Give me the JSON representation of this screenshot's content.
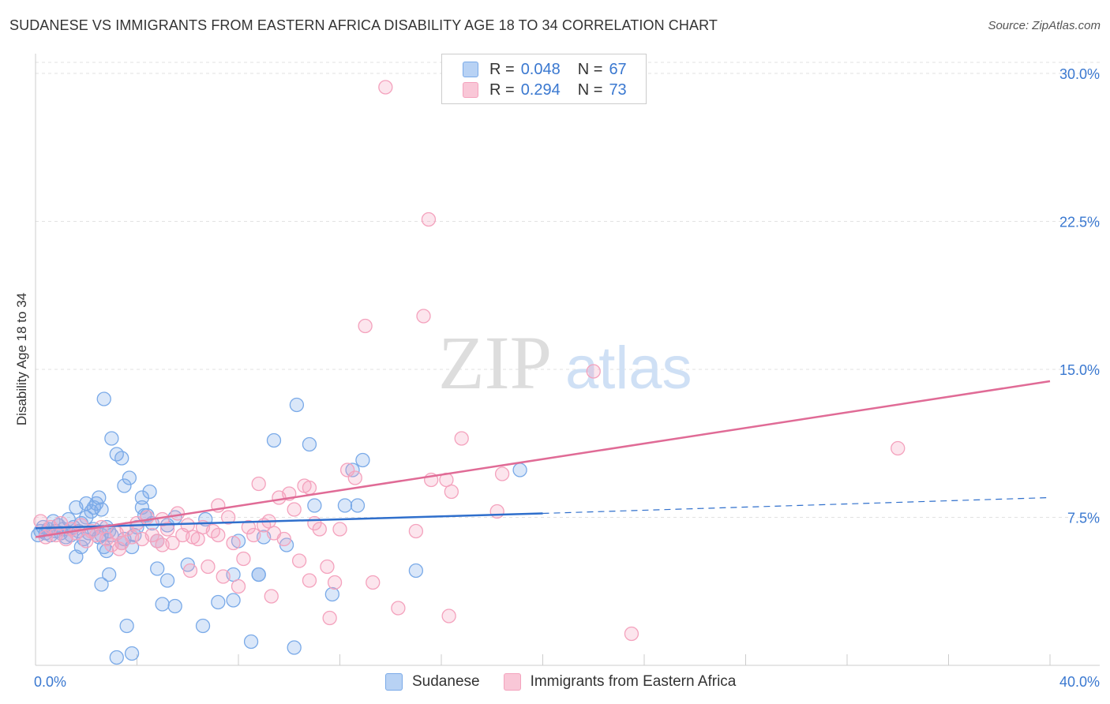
{
  "title": "SUDANESE VS IMMIGRANTS FROM EASTERN AFRICA DISABILITY AGE 18 TO 34 CORRELATION CHART",
  "source": "Source: ZipAtlas.com",
  "watermark": {
    "zip": "ZIP",
    "atlas": "atlas"
  },
  "legend": {
    "series": [
      {
        "r_label": "R =",
        "r_value": "0.048",
        "n_label": "N =",
        "n_value": "67"
      },
      {
        "r_label": "R =",
        "r_value": "0.294",
        "n_label": "N =",
        "n_value": "73"
      }
    ]
  },
  "chart_data": {
    "type": "scatter",
    "title": "SUDANESE VS IMMIGRANTS FROM EASTERN AFRICA DISABILITY AGE 18 TO 34 CORRELATION CHART",
    "xlabel": "",
    "ylabel": "Disability Age 18 to 34",
    "xlim": [
      0,
      40
    ],
    "ylim": [
      0,
      31
    ],
    "x_tick_labels": [
      "0.0%",
      "40.0%"
    ],
    "y_ticks": [
      7.5,
      15.0,
      22.5,
      30.0
    ],
    "y_tick_labels": [
      "7.5%",
      "15.0%",
      "22.5%",
      "30.0%"
    ],
    "grid": true,
    "legend_position": "top-center",
    "series": [
      {
        "name": "Sudanese",
        "color": "#7aaae8",
        "line_color": "#2f6fcc",
        "trend": {
          "x0": 0,
          "y0": 6.95,
          "x1": 20,
          "y1": 7.7,
          "dash_to_x": 40,
          "dash_to_y": 8.5
        },
        "points": [
          [
            0.1,
            6.6
          ],
          [
            0.2,
            6.8
          ],
          [
            0.3,
            7.0
          ],
          [
            0.4,
            6.7
          ],
          [
            0.5,
            6.9
          ],
          [
            0.6,
            6.6
          ],
          [
            0.7,
            7.3
          ],
          [
            0.8,
            6.8
          ],
          [
            0.9,
            7.1
          ],
          [
            1.0,
            6.7
          ],
          [
            1.1,
            6.9
          ],
          [
            1.2,
            6.5
          ],
          [
            1.3,
            7.4
          ],
          [
            1.4,
            6.6
          ],
          [
            1.5,
            7.0
          ],
          [
            1.6,
            8.0
          ],
          [
            1.7,
            6.8
          ],
          [
            1.8,
            7.2
          ],
          [
            1.9,
            6.4
          ],
          [
            2.0,
            8.2
          ],
          [
            2.1,
            6.7
          ],
          [
            2.2,
            7.8
          ],
          [
            2.3,
            6.9
          ],
          [
            2.4,
            8.2
          ],
          [
            2.5,
            6.5
          ],
          [
            2.6,
            7.9
          ],
          [
            2.7,
            6.0
          ],
          [
            2.8,
            5.8
          ],
          [
            2.9,
            6.8
          ],
          [
            3.0,
            6.6
          ],
          [
            1.6,
            5.5
          ],
          [
            1.8,
            6.0
          ],
          [
            2.0,
            7.5
          ],
          [
            2.3,
            8.0
          ],
          [
            2.5,
            8.5
          ],
          [
            2.6,
            6.6
          ],
          [
            2.8,
            7.0
          ],
          [
            3.0,
            11.5
          ],
          [
            3.2,
            10.7
          ],
          [
            3.4,
            10.5
          ],
          [
            3.5,
            6.4
          ],
          [
            3.7,
            9.5
          ],
          [
            3.9,
            6.6
          ],
          [
            4.0,
            7.0
          ],
          [
            4.2,
            8.5
          ],
          [
            4.4,
            7.6
          ],
          [
            4.6,
            7.2
          ],
          [
            4.8,
            6.3
          ],
          [
            2.9,
            4.6
          ],
          [
            2.6,
            4.1
          ],
          [
            3.5,
            9.1
          ],
          [
            2.7,
            13.5
          ],
          [
            5.2,
            4.3
          ],
          [
            5.5,
            3.0
          ],
          [
            6.0,
            5.1
          ],
          [
            4.8,
            4.9
          ],
          [
            5.0,
            3.1
          ],
          [
            6.6,
            2.0
          ],
          [
            7.2,
            3.2
          ],
          [
            7.8,
            4.6
          ],
          [
            5.5,
            7.5
          ],
          [
            6.7,
            7.4
          ],
          [
            8.5,
            1.2
          ],
          [
            9.4,
            11.4
          ],
          [
            10.3,
            13.2
          ],
          [
            10.8,
            11.2
          ],
          [
            12.2,
            8.1
          ],
          [
            12.9,
            10.4
          ],
          [
            8.0,
            6.3
          ],
          [
            9.0,
            6.5
          ],
          [
            8.8,
            4.6
          ],
          [
            3.2,
            0.4
          ],
          [
            3.8,
            0.6
          ],
          [
            4.5,
            8.8
          ],
          [
            9.9,
            6.1
          ],
          [
            12.7,
            8.1
          ],
          [
            15.0,
            4.8
          ],
          [
            19.1,
            9.9
          ],
          [
            3.6,
            2.0
          ],
          [
            10.2,
            0.9
          ],
          [
            7.8,
            3.3
          ],
          [
            8.8,
            4.6
          ],
          [
            5.2,
            7.1
          ],
          [
            4.2,
            8.0
          ],
          [
            11.7,
            3.6
          ],
          [
            3.4,
            6.2
          ],
          [
            4.3,
            7.6
          ],
          [
            11.0,
            8.1
          ],
          [
            3.8,
            6.0
          ],
          [
            12.5,
            9.9
          ]
        ]
      },
      {
        "name": "Immigrants from Eastern Africa",
        "color": "#f4a2bd",
        "line_color": "#e06b96",
        "trend": {
          "x0": 0,
          "y0": 6.5,
          "x1": 40,
          "y1": 14.4
        },
        "points": [
          [
            0.2,
            7.3
          ],
          [
            0.4,
            6.5
          ],
          [
            0.6,
            7.0
          ],
          [
            0.8,
            6.6
          ],
          [
            1.0,
            7.2
          ],
          [
            1.2,
            6.4
          ],
          [
            1.4,
            6.9
          ],
          [
            1.6,
            6.7
          ],
          [
            1.8,
            7.1
          ],
          [
            2.0,
            6.3
          ],
          [
            2.2,
            6.8
          ],
          [
            2.4,
            6.6
          ],
          [
            2.6,
            7.0
          ],
          [
            2.8,
            6.4
          ],
          [
            3.0,
            6.1
          ],
          [
            3.2,
            6.7
          ],
          [
            3.4,
            6.2
          ],
          [
            3.6,
            6.9
          ],
          [
            3.8,
            6.5
          ],
          [
            4.0,
            7.2
          ],
          [
            4.2,
            6.4
          ],
          [
            4.4,
            7.5
          ],
          [
            4.6,
            6.6
          ],
          [
            4.8,
            6.3
          ],
          [
            5.0,
            7.4
          ],
          [
            5.2,
            6.9
          ],
          [
            5.4,
            6.2
          ],
          [
            5.6,
            7.7
          ],
          [
            5.8,
            6.6
          ],
          [
            6.0,
            7.1
          ],
          [
            6.2,
            6.5
          ],
          [
            6.4,
            6.4
          ],
          [
            6.6,
            7.0
          ],
          [
            6.8,
            5.0
          ],
          [
            7.0,
            6.8
          ],
          [
            7.2,
            6.6
          ],
          [
            7.4,
            4.5
          ],
          [
            7.6,
            7.5
          ],
          [
            7.8,
            6.2
          ],
          [
            8.0,
            4.0
          ],
          [
            8.2,
            5.4
          ],
          [
            8.4,
            7.0
          ],
          [
            8.6,
            6.6
          ],
          [
            8.8,
            9.2
          ],
          [
            9.0,
            7.1
          ],
          [
            9.2,
            7.3
          ],
          [
            9.4,
            6.7
          ],
          [
            9.6,
            8.5
          ],
          [
            9.8,
            6.4
          ],
          [
            10.0,
            8.7
          ],
          [
            10.2,
            7.9
          ],
          [
            10.4,
            5.3
          ],
          [
            10.6,
            9.1
          ],
          [
            10.8,
            9.0
          ],
          [
            11.0,
            7.2
          ],
          [
            11.2,
            6.9
          ],
          [
            11.5,
            5.0
          ],
          [
            11.8,
            4.2
          ],
          [
            12.0,
            6.9
          ],
          [
            12.3,
            9.9
          ],
          [
            12.6,
            9.5
          ],
          [
            13.0,
            17.2
          ],
          [
            13.3,
            4.2
          ],
          [
            13.8,
            29.3
          ],
          [
            14.3,
            2.9
          ],
          [
            15.0,
            6.8
          ],
          [
            15.3,
            17.7
          ],
          [
            15.5,
            22.6
          ],
          [
            15.6,
            9.4
          ],
          [
            16.2,
            9.4
          ],
          [
            16.4,
            8.8
          ],
          [
            16.8,
            11.5
          ],
          [
            18.4,
            9.7
          ],
          [
            18.2,
            7.8
          ],
          [
            16.3,
            2.5
          ],
          [
            22.0,
            14.9
          ],
          [
            23.5,
            1.6
          ],
          [
            34.0,
            11.0
          ],
          [
            9.3,
            3.5
          ],
          [
            10.8,
            4.3
          ],
          [
            11.6,
            2.4
          ],
          [
            5.0,
            6.1
          ],
          [
            7.2,
            8.1
          ],
          [
            3.3,
            5.9
          ],
          [
            6.1,
            4.8
          ]
        ]
      }
    ]
  },
  "bottom_legend": [
    {
      "label": "Sudanese"
    },
    {
      "label": "Immigrants from Eastern Africa"
    }
  ]
}
